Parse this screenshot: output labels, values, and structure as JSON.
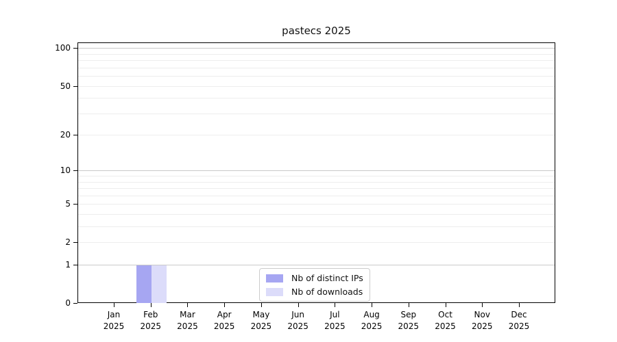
{
  "chart_data": {
    "type": "bar",
    "title": "pastecs 2025",
    "categories": [
      "Jan",
      "Feb",
      "Mar",
      "Apr",
      "May",
      "Jun",
      "Jul",
      "Aug",
      "Sep",
      "Oct",
      "Nov",
      "Dec"
    ],
    "category_year": "2025",
    "series": [
      {
        "name": "Nb of distinct IPs",
        "color": "#a6a6f2",
        "values": [
          0,
          1,
          0,
          0,
          0,
          0,
          0,
          0,
          0,
          0,
          0,
          0
        ]
      },
      {
        "name": "Nb of downloads",
        "color": "#dcdcfa",
        "values": [
          0,
          1,
          0,
          0,
          0,
          0,
          0,
          0,
          0,
          0,
          0,
          0
        ]
      }
    ],
    "yscale": "log1p",
    "ylim": [
      0,
      111
    ],
    "y_major_ticks": [
      0,
      1,
      2,
      5,
      10,
      20,
      50,
      100
    ],
    "y_major_gridlines": [
      1,
      10,
      100
    ],
    "y_minor_gridlines": [
      2,
      3,
      4,
      5,
      6,
      7,
      8,
      9,
      20,
      30,
      40,
      50,
      60,
      70,
      80,
      90
    ],
    "grid": true,
    "legend_position": "lower center",
    "colors": {
      "major_grid": "#c9c9c9",
      "minor_grid": "#ededed",
      "axis": "#000000"
    }
  }
}
